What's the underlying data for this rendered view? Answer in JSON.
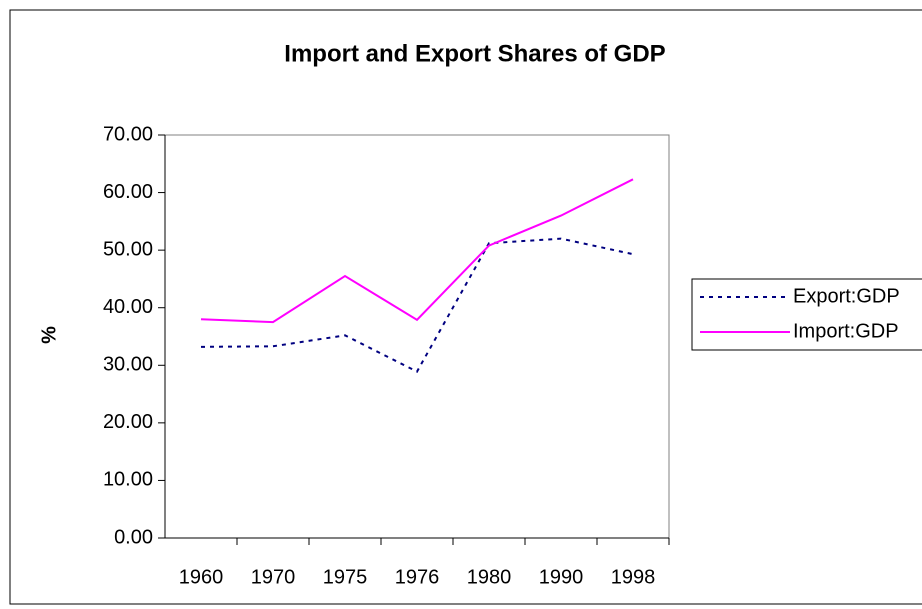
{
  "chart_data": {
    "type": "line",
    "title": "Import and Export Shares of GDP",
    "y_label": "%",
    "categories": [
      "1960",
      "1970",
      "1975",
      "1976",
      "1980",
      "1990",
      "1998"
    ],
    "series": [
      {
        "name": "Export:GDP",
        "color": "#000080",
        "dashed": true,
        "values": [
          33.2,
          33.3,
          35.2,
          28.9,
          51.2,
          52.0,
          49.3
        ]
      },
      {
        "name": "Import:GDP",
        "color": "#ff00ff",
        "dashed": false,
        "values": [
          38.0,
          37.5,
          45.5,
          37.9,
          50.8,
          56.0,
          62.3
        ]
      }
    ],
    "ylim": [
      0,
      70
    ],
    "yticks": [
      {
        "value": 0,
        "label": "0.00"
      },
      {
        "value": 10,
        "label": "10.00"
      },
      {
        "value": 20,
        "label": "20.00"
      },
      {
        "value": 30,
        "label": "30.00"
      },
      {
        "value": 40,
        "label": "40.00"
      },
      {
        "value": 50,
        "label": "50.00"
      },
      {
        "value": 60,
        "label": "60.00"
      },
      {
        "value": 70,
        "label": "70.00"
      }
    ],
    "grid": false,
    "legend": "right"
  }
}
